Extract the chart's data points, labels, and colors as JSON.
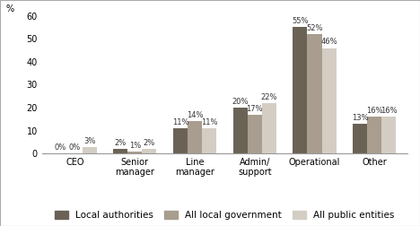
{
  "categories": [
    "CEO",
    "Senior\nmanager",
    "Line\nmanager",
    "Admin/\nsupport",
    "Operational",
    "Other"
  ],
  "series": {
    "Local authorities": [
      0,
      2,
      11,
      20,
      55,
      13
    ],
    "All local government": [
      0,
      1,
      14,
      17,
      52,
      16
    ],
    "All public entities": [
      3,
      2,
      11,
      22,
      46,
      16
    ]
  },
  "colors": {
    "Local authorities": "#6b6256",
    "All local government": "#a89d8e",
    "All public entities": "#d4cdc4"
  },
  "ylim": [
    0,
    60
  ],
  "yticks": [
    0,
    10,
    20,
    30,
    40,
    50,
    60
  ],
  "ylabel": "%",
  "bar_width": 0.24,
  "legend_order": [
    "Local authorities",
    "All local government",
    "All public entities"
  ],
  "label_fontsize": 6,
  "axis_fontsize": 7,
  "legend_fontsize": 7.5,
  "border_color": "#c0b9b0"
}
